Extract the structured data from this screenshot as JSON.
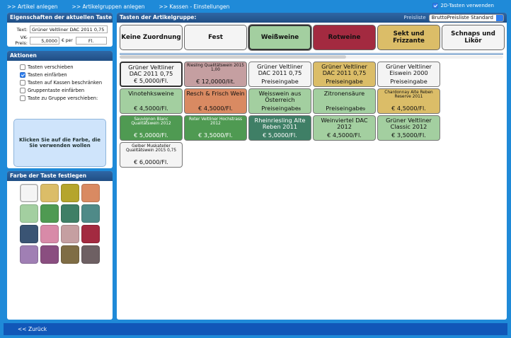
{
  "topnav": {
    "links": [
      ">> Artikel anlegen",
      ">> Artikelgruppen anlegen",
      ">> Kassen - Einstellungen"
    ],
    "toggle_2d_label": "2D-Tasten verwenden",
    "toggle_2d_checked": true
  },
  "properties": {
    "title": "Eigenschaften der aktuellen Taste",
    "text_label": "Text:",
    "text_value": "Grüner Veltliner DAC 2011 0,75",
    "price_label": "VK-Preis:",
    "price_value": "5,0000",
    "price_unit_label": "€ per",
    "unit_value": "Fl."
  },
  "actions": {
    "title": "Aktionen",
    "items": [
      {
        "label": "Tasten verschieben",
        "checked": false
      },
      {
        "label": "Tasten einfärben",
        "checked": true
      },
      {
        "label": "Tasten auf Kassen beschränken",
        "checked": false
      },
      {
        "label": "Gruppentaste einfärben",
        "checked": false
      },
      {
        "label": "Taste zu Gruppe verschieben:",
        "checked": false
      }
    ],
    "hint": "Klicken Sie auf die Farbe, die Sie verwenden wollen"
  },
  "colors": {
    "title": "Farbe der Taste festlegen",
    "swatches": [
      "#f4f4f4",
      "#dbbd68",
      "#b5a52c",
      "#d98a62",
      "#a3cfa0",
      "#4f9a52",
      "#3f7f66",
      "#4f8a88",
      "#3a5474",
      "#d88aa8",
      "#c59fa1",
      "#a32a40",
      "#a07fb4",
      "#8a4e80",
      "#7f6d45",
      "#6e6063"
    ]
  },
  "groups": {
    "title": "Tasten der Artikelgruppe:",
    "pricelist_label": "Preisliste",
    "pricelist_value": "BruttoPreisliste Standard",
    "tabs": [
      {
        "label": "Keine Zuordnung",
        "color": "#f4f4f4",
        "active": false
      },
      {
        "label": "Fest",
        "color": "#f4f4f4",
        "active": false
      },
      {
        "label": "Weißweine",
        "color": "#a3cfa0",
        "active": true
      },
      {
        "label": "Rotweine",
        "color": "#a32a40",
        "active": false
      },
      {
        "label": "Sekt und Frizzante",
        "color": "#dbbd68",
        "active": false
      },
      {
        "label": "Schnaps und Likör",
        "color": "#f4f4f4",
        "active": false
      }
    ],
    "keys": [
      {
        "name": "Grüner Veltliner DAC 2011 0,75",
        "price": "€ 5,0000/Fl.",
        "color": "#f4f4f4",
        "text": "#111",
        "small": false,
        "active": true,
        "count": ""
      },
      {
        "name": "Riesling Qualitätswein 2015 1,00",
        "price": "€ 12,0000/lit.",
        "color": "#c59fa1",
        "text": "#111",
        "small": true,
        "active": false,
        "count": ""
      },
      {
        "name": "Grüner Veltliner DAC 2011 0,75",
        "price": "Preiseingabe",
        "color": "#f4f4f4",
        "text": "#111",
        "small": false,
        "active": false,
        "count": ""
      },
      {
        "name": "Grüner Veltliner DAC 2011 0,75",
        "price": "Preiseingabe",
        "color": "#dbbd68",
        "text": "#111",
        "small": false,
        "active": false,
        "count": ""
      },
      {
        "name": "Grüner Veltliner Eiswein 2000",
        "price": "Preiseingabe",
        "color": "#f4f4f4",
        "text": "#111",
        "small": false,
        "active": false,
        "count": ""
      },
      {
        "name": "Vinotehksweine",
        "price": "€ 4,5000/Fl.",
        "color": "#a3cfa0",
        "text": "#111",
        "small": false,
        "active": false,
        "count": ""
      },
      {
        "name": "Resch & Frisch Wein",
        "price": "€ 4,5000/Fl.",
        "color": "#d98a62",
        "text": "#111",
        "small": false,
        "active": false,
        "count": ""
      },
      {
        "name": "Weisswein aus Österreich",
        "price": "Preiseingabe",
        "color": "#a3cfa0",
        "text": "#111",
        "small": false,
        "active": false,
        "count": "8"
      },
      {
        "name": "Zitronensäure",
        "price": "Preiseingabe",
        "color": "#a3cfa0",
        "text": "#111",
        "small": false,
        "active": false,
        "count": "9"
      },
      {
        "name": "Chardonnay Alte Reben Reserve 2011",
        "price": "€ 4,5000/Fl.",
        "color": "#dbbd68",
        "text": "#111",
        "small": true,
        "active": false,
        "count": ""
      },
      {
        "name": "Sauvignon Blanc Qualitätswein 2012",
        "price": "€ 5,0000/Fl.",
        "color": "#4f9a52",
        "text": "#fff",
        "small": true,
        "active": false,
        "count": ""
      },
      {
        "name": "Roter Veltliner Hochstrass 2012",
        "price": "€ 3,5000/Fl.",
        "color": "#4f9a52",
        "text": "#fff",
        "small": true,
        "active": false,
        "count": ""
      },
      {
        "name": "Rheinriesling Alte Reben 2011",
        "price": "€ 5,0000/Fl.",
        "color": "#3f7f66",
        "text": "#fff",
        "small": false,
        "active": false,
        "count": ""
      },
      {
        "name": "Weinviertel DAC 2012",
        "price": "€ 4,5000/Fl.",
        "color": "#a3cfa0",
        "text": "#111",
        "small": false,
        "active": false,
        "count": ""
      },
      {
        "name": "Grüner Veltliner Classic 2012",
        "price": "€ 3,5000/Fl.",
        "color": "#a3cfa0",
        "text": "#111",
        "small": false,
        "active": false,
        "count": ""
      },
      {
        "name": "Gelber Muskateller Qualitätswein 2015 0,75",
        "price": "€ 6,0000/Fl.",
        "color": "#f4f4f4",
        "text": "#111",
        "small": true,
        "active": false,
        "count": ""
      }
    ]
  },
  "footer": {
    "back_label": "<< Zurück"
  }
}
